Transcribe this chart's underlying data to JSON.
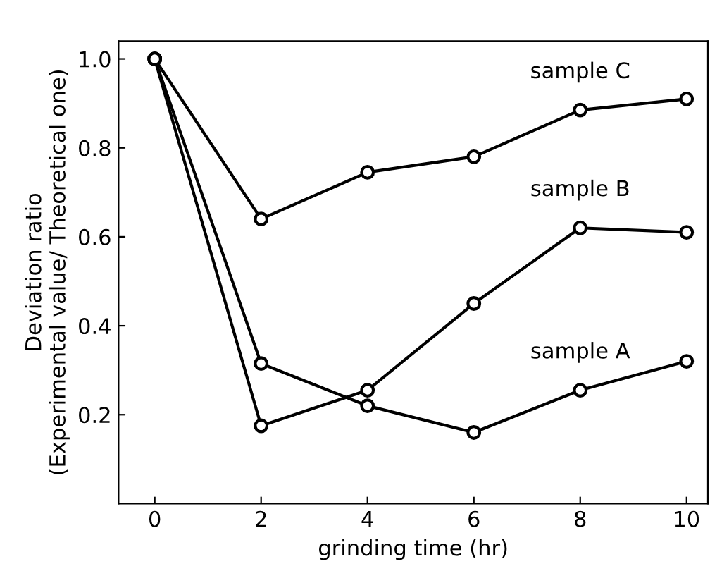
{
  "chart_data": {
    "type": "line",
    "xlabel": "grinding time (hr)",
    "ylabel": "Deviation ratio\n(Experimental value/ Theoretical one)",
    "x": [
      0,
      2,
      4,
      6,
      8,
      10
    ],
    "series": [
      {
        "name": "sample C",
        "color": "#000000",
        "values": [
          1.0,
          0.64,
          0.745,
          0.78,
          0.885,
          0.91
        ]
      },
      {
        "name": "sample B",
        "color": "#000000",
        "values": [
          1.0,
          0.175,
          0.255,
          0.45,
          0.62,
          0.61
        ]
      },
      {
        "name": "sample A",
        "color": "#000000",
        "values": [
          1.0,
          0.315,
          0.22,
          0.16,
          0.255,
          0.32
        ]
      }
    ],
    "xlim": [
      -0.68,
      10.4
    ],
    "ylim": [
      0,
      1.04
    ],
    "xticks": [
      0,
      2,
      4,
      6,
      8,
      10
    ],
    "yticks": [
      {
        "value": 0.2,
        "label": "0.2"
      },
      {
        "value": 0.4,
        "label": "0.4"
      },
      {
        "value": 0.6,
        "label": "0.6"
      },
      {
        "value": 0.8,
        "label": "0.8"
      },
      {
        "value": 1.0,
        "label": "1.0"
      }
    ],
    "grid": false,
    "legend": false,
    "marker": "circle",
    "line_style": "solid"
  }
}
